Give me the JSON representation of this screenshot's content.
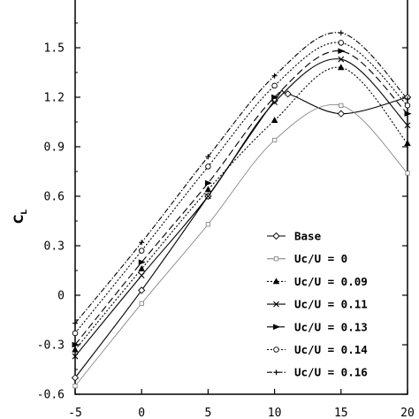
{
  "chart_data": {
    "type": "line",
    "title": "",
    "xlabel": "",
    "ylabel": "C",
    "ylabel_subscript": "L",
    "xlim": [
      -5,
      20
    ],
    "ylim": [
      -0.6,
      1.8
    ],
    "x_ticks": [
      -5,
      0,
      5,
      10,
      15,
      20
    ],
    "y_ticks": [
      -0.6,
      -0.3,
      0,
      0.3,
      0.6,
      0.9,
      1.2,
      1.5
    ],
    "y_tick_labels": [
      "-0.6",
      "-0.3",
      "0",
      "0.3",
      "0.6",
      "0.9",
      "1.2",
      "1.5"
    ],
    "x_tick_labels": [
      "-5",
      "0",
      "5",
      "10",
      "15",
      "20"
    ],
    "grid": false,
    "legend_position": "bottom-right",
    "series": [
      {
        "name": "Base",
        "color": "#000000",
        "dash": "",
        "marker": "diamond",
        "x": [
          -5,
          0,
          5,
          10,
          11,
          15,
          20
        ],
        "y": [
          -0.5,
          0.03,
          0.6,
          1.18,
          1.22,
          1.1,
          1.2
        ]
      },
      {
        "name": "Uc/U = 0",
        "color": "#888888",
        "dash": "",
        "marker": "square",
        "x": [
          -5,
          0,
          5,
          10,
          15,
          20
        ],
        "y": [
          -0.55,
          -0.05,
          0.43,
          0.94,
          1.15,
          0.74
        ]
      },
      {
        "name": "Uc/U = 0.09",
        "color": "#000000",
        "dash": "2,2",
        "marker": "triangle",
        "x": [
          -5,
          0,
          5,
          10,
          15,
          20
        ],
        "y": [
          -0.33,
          0.16,
          0.64,
          1.06,
          1.38,
          0.92
        ]
      },
      {
        "name": "Uc/U = 0.11",
        "color": "#000000",
        "dash": "",
        "marker": "cross",
        "x": [
          -5,
          0,
          5,
          10,
          15,
          20
        ],
        "y": [
          -0.37,
          0.12,
          0.6,
          1.17,
          1.43,
          1.03
        ]
      },
      {
        "name": "Uc/U = 0.13",
        "color": "#000000",
        "dash": "8,4",
        "marker": "tri-right",
        "x": [
          -5,
          0,
          5,
          10,
          15,
          20
        ],
        "y": [
          -0.3,
          0.2,
          0.68,
          1.2,
          1.48,
          1.1
        ]
      },
      {
        "name": "Uc/U = 0.14",
        "color": "#000000",
        "dash": "2,2",
        "marker": "circle",
        "x": [
          -5,
          0,
          5,
          10,
          15,
          20
        ],
        "y": [
          -0.23,
          0.27,
          0.78,
          1.27,
          1.53,
          1.15
        ]
      },
      {
        "name": "Uc/U = 0.16",
        "color": "#000000",
        "dash": "6,2,1.5,2",
        "marker": "plus",
        "x": [
          -5,
          0,
          5,
          10,
          15,
          20
        ],
        "y": [
          -0.17,
          0.32,
          0.84,
          1.33,
          1.59,
          1.19
        ]
      }
    ]
  }
}
